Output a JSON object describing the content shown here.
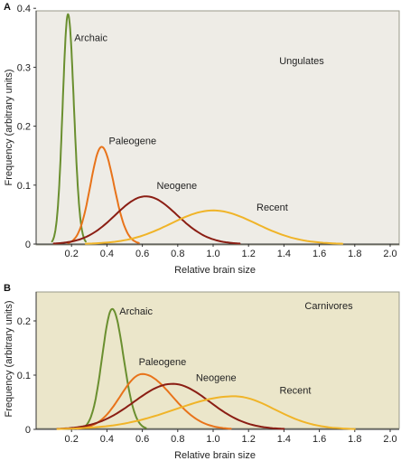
{
  "colors": {
    "archaic": "#6a8f2f",
    "paleogene": "#e8731a",
    "neogene": "#8b1e14",
    "recent": "#f0b428",
    "panel_a_bg": "#eeece6",
    "panel_b_bg": "#ebe6ca",
    "panel_border": "#9a9a8a"
  },
  "chart_data": [
    {
      "type": "line",
      "panel_letter": "A",
      "title": "Ungulates",
      "xlabel": "Relative brain size",
      "ylabel": "Frequency (arbitrary units)",
      "xlim": [
        0,
        2.0
      ],
      "ylim": [
        0,
        0.4
      ],
      "x_ticks": [
        "0.2",
        "0.4",
        "0.6",
        "0.8",
        "1.0",
        "1.2",
        "1.4",
        "1.6",
        "1.8",
        "2.0"
      ],
      "y_ticks": [
        "0",
        "0.1",
        "0.2",
        "0.3",
        "0.4"
      ],
      "grid": false,
      "series": [
        {
          "name": "Archaic",
          "color_key": "archaic",
          "peak_x": 0.18,
          "peak_y": 0.39,
          "x_range": [
            0.09,
            0.28
          ]
        },
        {
          "name": "Paleogene",
          "color_key": "paleogene",
          "peak_x": 0.37,
          "peak_y": 0.165,
          "x_range": [
            0.18,
            0.58
          ]
        },
        {
          "name": "Neogene",
          "color_key": "neogene",
          "peak_x": 0.62,
          "peak_y": 0.081,
          "x_range": [
            0.1,
            1.15
          ]
        },
        {
          "name": "Recent",
          "color_key": "recent",
          "peak_x": 1.0,
          "peak_y": 0.057,
          "x_range": [
            0.28,
            1.73
          ]
        }
      ]
    },
    {
      "type": "line",
      "panel_letter": "B",
      "title": "Carnivores",
      "xlabel": "Relative brain size",
      "ylabel": "Frequency (arbitrary units)",
      "xlim": [
        0,
        2.0
      ],
      "ylim": [
        0,
        0.25
      ],
      "x_ticks": [
        "0.2",
        "0.4",
        "0.6",
        "0.8",
        "1.0",
        "1.2",
        "1.4",
        "1.6",
        "1.8",
        "2.0"
      ],
      "y_ticks": [
        "0",
        "0.1",
        "0.2"
      ],
      "grid": false,
      "series": [
        {
          "name": "Archaic",
          "color_key": "archaic",
          "peak_x": 0.43,
          "peak_y": 0.222,
          "x_range": [
            0.26,
            0.62
          ]
        },
        {
          "name": "Paleogene",
          "color_key": "paleogene",
          "peak_x": 0.6,
          "peak_y": 0.102,
          "x_range": [
            0.23,
            1.1
          ]
        },
        {
          "name": "Neogene",
          "color_key": "neogene",
          "peak_x": 0.77,
          "peak_y": 0.084,
          "x_range": [
            0.12,
            1.4
          ]
        },
        {
          "name": "Recent",
          "color_key": "recent",
          "peak_x": 1.12,
          "peak_y": 0.061,
          "x_range": [
            0.12,
            1.8
          ]
        }
      ]
    }
  ]
}
